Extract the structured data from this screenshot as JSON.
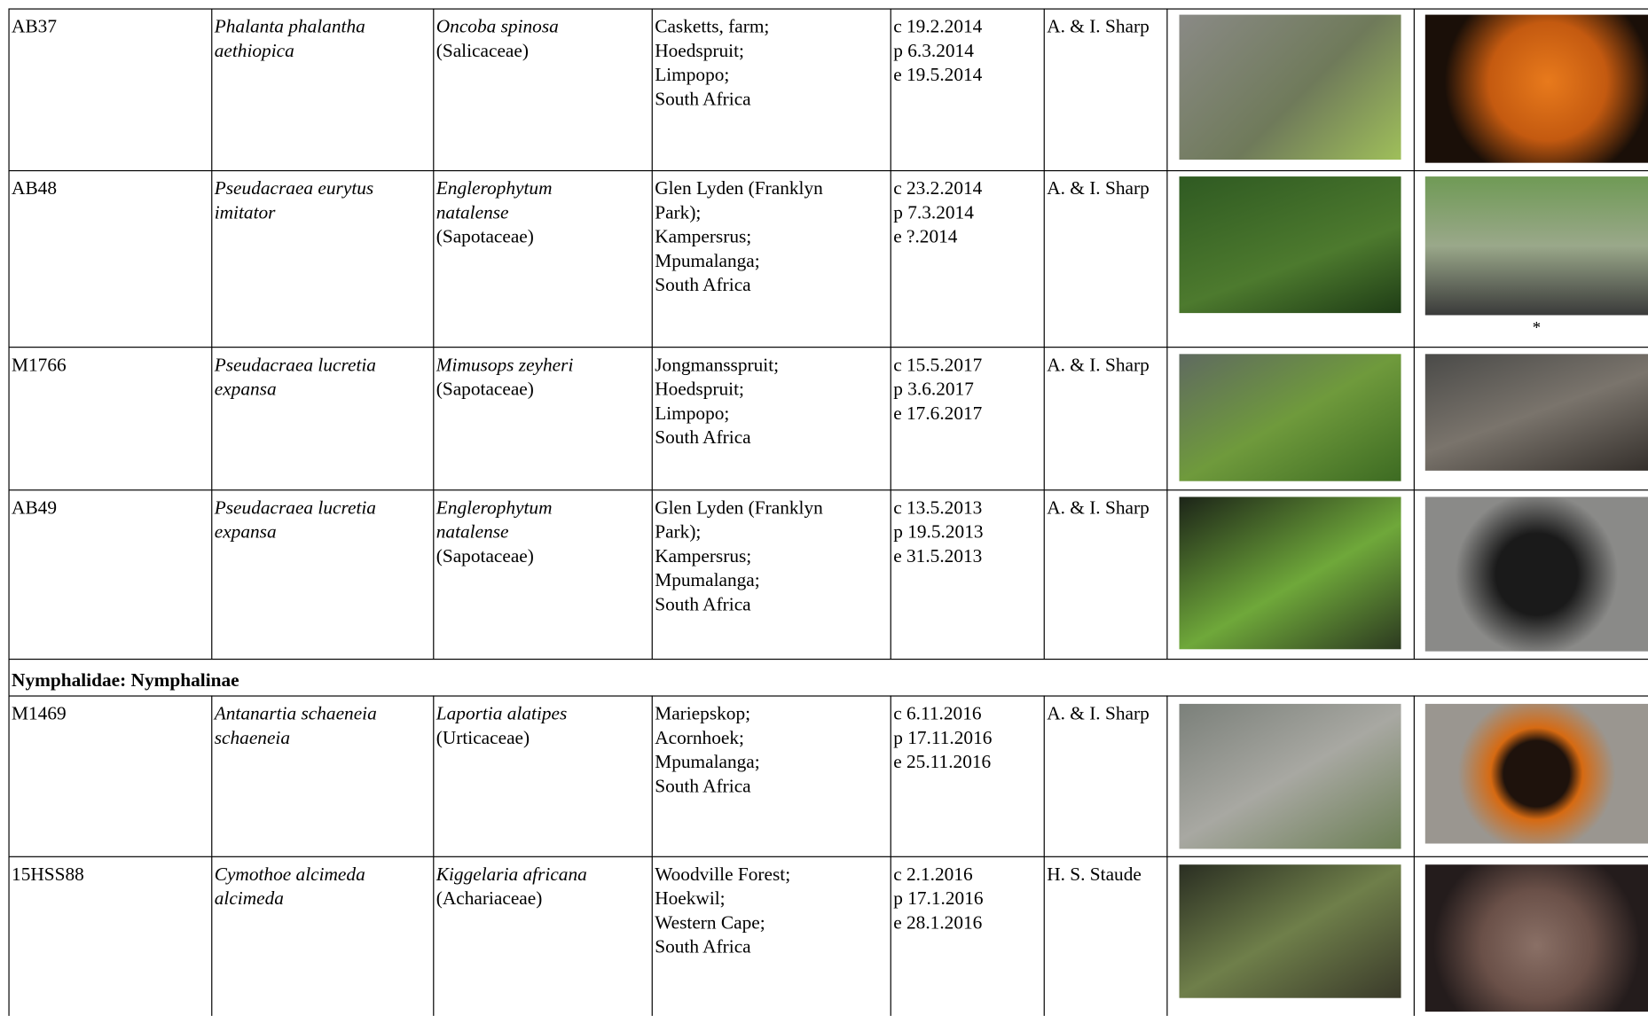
{
  "rows": [
    {
      "code": "AB37",
      "species": [
        "Phalanta phalantha",
        "aethiopica"
      ],
      "host_plant": [
        "Oncoba spinosa"
      ],
      "host_family": "(Salicaceae)",
      "locality": [
        "Casketts, farm;",
        "Hoedspruit;",
        "Limpopo;",
        "South Africa"
      ],
      "dates": [
        "c 19.2.2014",
        "p 6.3.2014",
        "e 19.5.2014"
      ],
      "photographer": "A. & I. Sharp"
    },
    {
      "code": "AB48",
      "species": [
        "Pseudacraea eurytus",
        "imitator"
      ],
      "host_plant": [
        "Englerophytum",
        "natalense"
      ],
      "host_family": "(Sapotaceae)",
      "locality": [
        "Glen Lyden (Franklyn",
        "Park);",
        "Kampersrus;",
        "Mpumalanga;",
        "South Africa"
      ],
      "dates": [
        "c 23.2.2014",
        "p 7.3.2014",
        "e ?.2014"
      ],
      "photographer": "A. & I. Sharp",
      "image_note": "*"
    },
    {
      "code": "M1766",
      "species": [
        "Pseudacraea lucretia",
        "expansa"
      ],
      "host_plant": [
        "Mimusops zeyheri"
      ],
      "host_family": "(Sapotaceae)",
      "locality": [
        "Jongmansspruit;",
        "Hoedspruit;",
        "Limpopo;",
        "South Africa"
      ],
      "dates": [
        "c 15.5.2017",
        "p 3.6.2017",
        "e 17.6.2017"
      ],
      "photographer": "A. & I. Sharp"
    },
    {
      "code": "AB49",
      "species": [
        "Pseudacraea lucretia",
        "expansa"
      ],
      "host_plant": [
        "Englerophytum",
        "natalense"
      ],
      "host_family": "(Sapotaceae)",
      "locality": [
        "Glen Lyden (Franklyn",
        "Park);",
        "Kampersrus;",
        "Mpumalanga;",
        "South Africa"
      ],
      "dates": [
        "c 13.5.2013",
        "p 19.5.2013",
        "e 31.5.2013"
      ],
      "photographer": "A. & I. Sharp"
    },
    {
      "heading": "Nymphalidae: Nymphalinae"
    },
    {
      "code": "M1469",
      "species": [
        "Antanartia schaeneia",
        "schaeneia"
      ],
      "host_plant": [
        "Laportia alatipes"
      ],
      "host_family": "(Urticaceae)",
      "locality": [
        "Mariepskop;",
        "Acornhoek;",
        "Mpumalanga;",
        "South Africa"
      ],
      "dates": [
        "c 6.11.2016",
        "p 17.11.2016",
        "e 25.11.2016"
      ],
      "photographer": "A. & I. Sharp"
    },
    {
      "code": "15HSS88",
      "species": [
        "Cymothoe alcimeda",
        "alcimeda"
      ],
      "host_plant": [
        "Kiggelaria africana"
      ],
      "host_family": "(Achariaceae)",
      "locality": [
        "Woodville Forest;",
        "Hoekwil;",
        "Western Cape;",
        "South Africa"
      ],
      "dates": [
        "c 2.1.2016",
        "p 17.1.2016",
        "e 28.1.2016"
      ],
      "photographer": "H. S. Staude"
    }
  ]
}
